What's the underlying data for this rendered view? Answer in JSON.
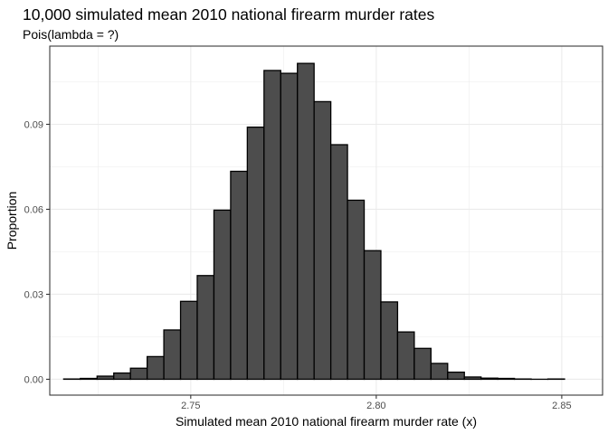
{
  "chart_data": {
    "type": "bar",
    "title": "10,000 simulated mean 2010 national firearm murder rates",
    "subtitle": "Pois(lambda = ?)",
    "xlabel": "Simulated mean 2010 national firearm murder rate (x)",
    "ylabel": "Proportion",
    "xlim": [
      2.712,
      2.861
    ],
    "ylim": [
      -0.0056,
      0.1176
    ],
    "x_ticks": [
      2.75,
      2.8,
      2.85
    ],
    "x_tick_labels": [
      "2.75",
      "2.80",
      "2.85"
    ],
    "y_ticks": [
      0.0,
      0.03,
      0.06,
      0.09
    ],
    "y_tick_labels": [
      "0.00",
      "0.03",
      "0.06",
      "0.09"
    ],
    "grid": true,
    "bin_width": 0.0045,
    "bins": [
      {
        "x": 2.718,
        "y": 0.0001
      },
      {
        "x": 2.7225,
        "y": 0.0003
      },
      {
        "x": 2.727,
        "y": 0.0011
      },
      {
        "x": 2.7315,
        "y": 0.0022
      },
      {
        "x": 2.736,
        "y": 0.0039
      },
      {
        "x": 2.7405,
        "y": 0.008
      },
      {
        "x": 2.745,
        "y": 0.0174
      },
      {
        "x": 2.7495,
        "y": 0.0275
      },
      {
        "x": 2.754,
        "y": 0.0366
      },
      {
        "x": 2.7585,
        "y": 0.0597
      },
      {
        "x": 2.763,
        "y": 0.0734
      },
      {
        "x": 2.7675,
        "y": 0.089
      },
      {
        "x": 2.772,
        "y": 0.109
      },
      {
        "x": 2.7765,
        "y": 0.108
      },
      {
        "x": 2.781,
        "y": 0.1115
      },
      {
        "x": 2.7855,
        "y": 0.098
      },
      {
        "x": 2.79,
        "y": 0.0828
      },
      {
        "x": 2.7945,
        "y": 0.0632
      },
      {
        "x": 2.799,
        "y": 0.0454
      },
      {
        "x": 2.8035,
        "y": 0.0273
      },
      {
        "x": 2.808,
        "y": 0.0167
      },
      {
        "x": 2.8125,
        "y": 0.0109
      },
      {
        "x": 2.817,
        "y": 0.0056
      },
      {
        "x": 2.8215,
        "y": 0.0025
      },
      {
        "x": 2.826,
        "y": 0.0008
      },
      {
        "x": 2.8305,
        "y": 0.0004
      },
      {
        "x": 2.835,
        "y": 0.0003
      },
      {
        "x": 2.8395,
        "y": 0.0001
      },
      {
        "x": 2.844,
        "y": 0.0
      },
      {
        "x": 2.8485,
        "y": 0.0001
      }
    ]
  }
}
